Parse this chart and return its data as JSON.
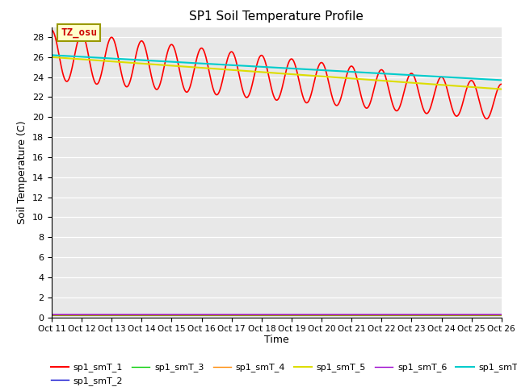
{
  "title": "SP1 Soil Temperature Profile",
  "xlabel": "Time",
  "ylabel": "Soil Temperature (C)",
  "ylim": [
    0,
    29
  ],
  "yticks": [
    0,
    2,
    4,
    6,
    8,
    10,
    12,
    14,
    16,
    18,
    20,
    22,
    24,
    26,
    28
  ],
  "xtick_labels": [
    "Oct 11",
    "Oct 12",
    "Oct 13",
    "Oct 14",
    "Oct 15",
    "Oct 16",
    "Oct 17",
    "Oct 18",
    "Oct 19",
    "Oct 20",
    "Oct 21",
    "Oct 22",
    "Oct 23",
    "Oct 24",
    "Oct 25",
    "Oct 26"
  ],
  "annotation_text": "TZ_osu",
  "bg_color": "#e8e8e8",
  "colors": {
    "sp1_smT_1": "#ff0000",
    "sp1_smT_2": "#0000cc",
    "sp1_smT_3": "#00cc00",
    "sp1_smT_4": "#ff8800",
    "sp1_smT_5": "#dddd00",
    "sp1_smT_6": "#9900cc",
    "sp1_smT_7": "#00cccc"
  },
  "lw": {
    "sp1_smT_1": 1.2,
    "sp1_smT_2": 1.0,
    "sp1_smT_3": 1.0,
    "sp1_smT_4": 1.0,
    "sp1_smT_5": 1.5,
    "sp1_smT_6": 1.0,
    "sp1_smT_7": 1.5
  }
}
